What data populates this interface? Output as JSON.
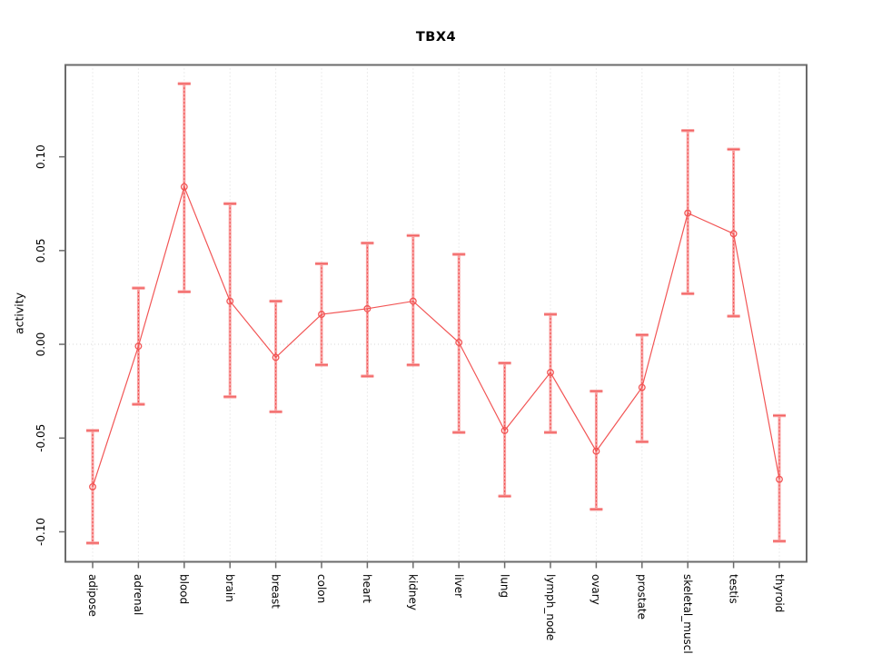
{
  "page": {
    "background": "#ffffff"
  },
  "chart_data": {
    "type": "line",
    "title": "TBX4",
    "ylabel": "activity",
    "xlabel": "",
    "categories": [
      "adipose",
      "adrenal",
      "blood",
      "brain",
      "breast",
      "colon",
      "heart",
      "kidney",
      "liver",
      "lung",
      "lymph_node",
      "ovary",
      "prostate",
      "skeletal_muscle",
      "testis",
      "thyroid"
    ],
    "series": [
      {
        "name": "TBX4 activity",
        "marker": "open-circle",
        "values": [
          -0.076,
          -0.001,
          0.084,
          0.023,
          -0.007,
          0.016,
          0.019,
          0.023,
          0.001,
          -0.046,
          -0.015,
          -0.057,
          -0.023,
          0.07,
          0.059,
          -0.072
        ],
        "upper": [
          -0.046,
          0.03,
          0.139,
          0.075,
          0.023,
          0.043,
          0.054,
          0.058,
          0.048,
          -0.01,
          0.016,
          -0.025,
          0.005,
          0.114,
          0.104,
          -0.038
        ],
        "lower": [
          -0.106,
          -0.032,
          0.028,
          -0.028,
          -0.036,
          -0.011,
          -0.017,
          -0.011,
          -0.047,
          -0.081,
          -0.047,
          -0.088,
          -0.052,
          0.027,
          0.015,
          -0.105
        ]
      }
    ],
    "yticks": [
      0.1,
      0.05,
      0.0,
      -0.05,
      -0.1
    ],
    "ytick_labels": [
      "0.10",
      "0.05",
      "0.00",
      "-0.05",
      "-0.10"
    ],
    "ylim": [
      -0.116,
      0.149
    ],
    "grid": "dotted vertical gridline at each category; dotted horizontal reference line at y=0; no legend",
    "legend": "none",
    "colors": {
      "line": "#f25555",
      "point_stroke": "#f25555",
      "error_band": "#f9a4a4",
      "error_dash": "#ee4747",
      "error_cap": "#f26060",
      "grid": "#d9d9d9",
      "axis": "#6b6b6b",
      "text": "#000000",
      "background": "#ffffff"
    }
  }
}
